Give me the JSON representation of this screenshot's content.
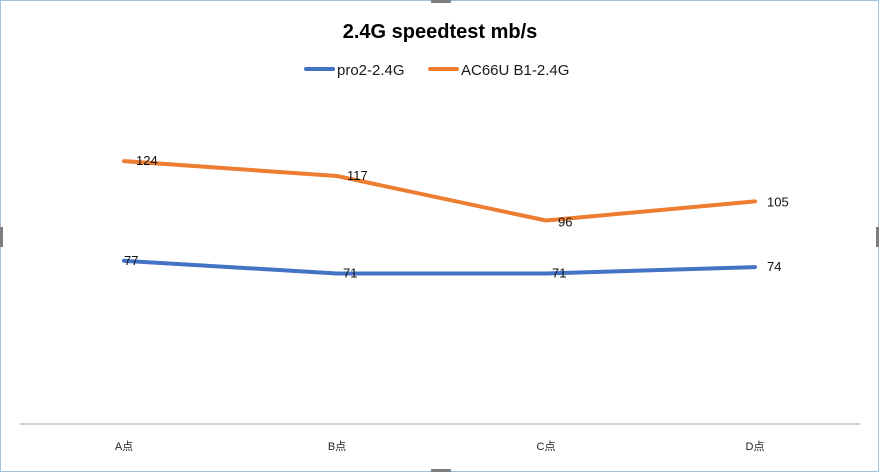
{
  "chart_data": {
    "type": "line",
    "title": "2.4G speedtest  mb/s",
    "categories": [
      "A点",
      "B点",
      "C点",
      "D点"
    ],
    "series": [
      {
        "name": "pro2-2.4G",
        "values": [
          77,
          71,
          71,
          74
        ],
        "color": "#4472c4"
      },
      {
        "name": "AC66U B1-2.4G",
        "values": [
          124,
          117,
          96,
          105
        ],
        "color": "#ed7d31"
      }
    ],
    "xlabel": "",
    "ylabel": "",
    "ylim": [
      0,
      200
    ],
    "grid": false,
    "legend_position": "top"
  }
}
